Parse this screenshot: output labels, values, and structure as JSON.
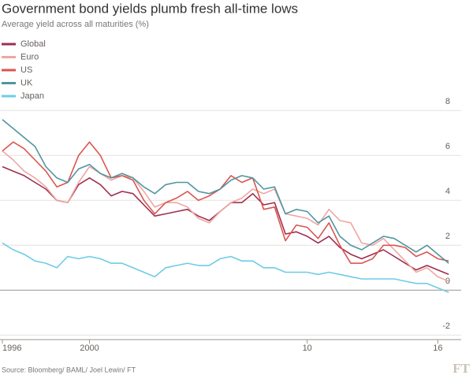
{
  "chart_data": {
    "type": "line",
    "title": "Government bond yields plumb fresh all-time lows",
    "subtitle": "Average yield across all maturities (%)",
    "source": "Source: Bloomberg/ BAML/ Joel Lewin/ FT",
    "logo": "FT",
    "x": [
      1996,
      1996.5,
      1997,
      1997.5,
      1998,
      1998.5,
      1999,
      1999.5,
      2000,
      2000.5,
      2001,
      2001.5,
      2002,
      2002.5,
      2003,
      2003.5,
      2004,
      2004.5,
      2005,
      2005.5,
      2006,
      2006.5,
      2007,
      2007.5,
      2008,
      2008.5,
      2009,
      2009.5,
      2010,
      2010.5,
      2011,
      2011.5,
      2012,
      2012.5,
      2013,
      2013.5,
      2014,
      2014.5,
      2015,
      2015.5,
      2016,
      2016.5
    ],
    "xlim": [
      1996,
      2016.6
    ],
    "xticks": [
      1996,
      2000,
      {
        "value": 2010,
        "label": "10"
      },
      {
        "value": 2016,
        "label": "16"
      }
    ],
    "ylim": [
      -2.2,
      8.5
    ],
    "yticks": [
      8,
      6,
      4,
      2,
      0,
      -2
    ],
    "grid": true,
    "legend": "top-left",
    "series": [
      {
        "name": "Global",
        "color": "#9e2f50",
        "values": [
          5.5,
          5.3,
          5.1,
          4.8,
          4.5,
          4.0,
          3.9,
          4.7,
          5.0,
          4.7,
          4.2,
          4.4,
          4.3,
          3.8,
          3.3,
          3.4,
          3.5,
          3.6,
          3.3,
          3.1,
          3.5,
          3.9,
          3.9,
          4.3,
          3.8,
          3.9,
          2.5,
          2.6,
          2.4,
          2.1,
          2.4,
          1.9,
          1.6,
          1.4,
          1.6,
          1.8,
          1.5,
          1.2,
          0.9,
          1.1,
          0.9,
          0.7
        ]
      },
      {
        "name": "Euro",
        "color": "#eea7a3",
        "values": [
          6.2,
          5.8,
          5.3,
          5.0,
          4.6,
          4.0,
          3.9,
          4.8,
          5.5,
          5.2,
          4.9,
          5.1,
          5.0,
          4.4,
          3.7,
          3.9,
          3.9,
          3.7,
          3.2,
          3.0,
          3.5,
          3.9,
          4.1,
          4.5,
          4.3,
          4.5,
          3.4,
          3.3,
          3.2,
          2.9,
          3.6,
          3.1,
          3.0,
          2.1,
          2.0,
          2.3,
          1.8,
          1.3,
          0.8,
          1.0,
          0.6,
          0.4
        ]
      },
      {
        "name": "US",
        "color": "#db5550",
        "values": [
          6.2,
          6.6,
          6.3,
          5.8,
          5.3,
          4.6,
          4.8,
          6.0,
          6.6,
          6.0,
          5.0,
          5.1,
          4.9,
          4.0,
          3.4,
          3.9,
          4.1,
          4.4,
          4.0,
          4.2,
          4.5,
          5.1,
          4.8,
          5.0,
          3.6,
          3.7,
          2.2,
          2.9,
          2.8,
          2.3,
          3.0,
          2.0,
          1.2,
          1.2,
          1.4,
          2.0,
          2.0,
          1.9,
          1.5,
          1.7,
          1.4,
          1.3
        ]
      },
      {
        "name": "UK",
        "color": "#4f96a1",
        "values": [
          7.6,
          7.2,
          6.8,
          6.4,
          5.5,
          5.0,
          4.8,
          5.4,
          5.6,
          5.2,
          5.0,
          5.2,
          5.0,
          4.6,
          4.3,
          4.7,
          4.8,
          4.8,
          4.4,
          4.3,
          4.5,
          4.9,
          5.1,
          5.0,
          4.5,
          4.6,
          3.4,
          3.6,
          3.5,
          3.0,
          3.3,
          2.4,
          2.0,
          1.8,
          2.1,
          2.4,
          2.3,
          2.0,
          1.7,
          2.0,
          1.6,
          1.2
        ]
      },
      {
        "name": "Japan",
        "color": "#6fcbe8",
        "values": [
          2.1,
          1.8,
          1.6,
          1.3,
          1.2,
          1.0,
          1.5,
          1.4,
          1.5,
          1.4,
          1.2,
          1.2,
          1.0,
          0.8,
          0.6,
          1.0,
          1.1,
          1.2,
          1.1,
          1.1,
          1.4,
          1.5,
          1.3,
          1.3,
          1.0,
          1.0,
          0.8,
          0.8,
          0.8,
          0.7,
          0.8,
          0.7,
          0.6,
          0.5,
          0.5,
          0.5,
          0.5,
          0.4,
          0.3,
          0.3,
          0.1,
          -0.1
        ]
      }
    ]
  }
}
